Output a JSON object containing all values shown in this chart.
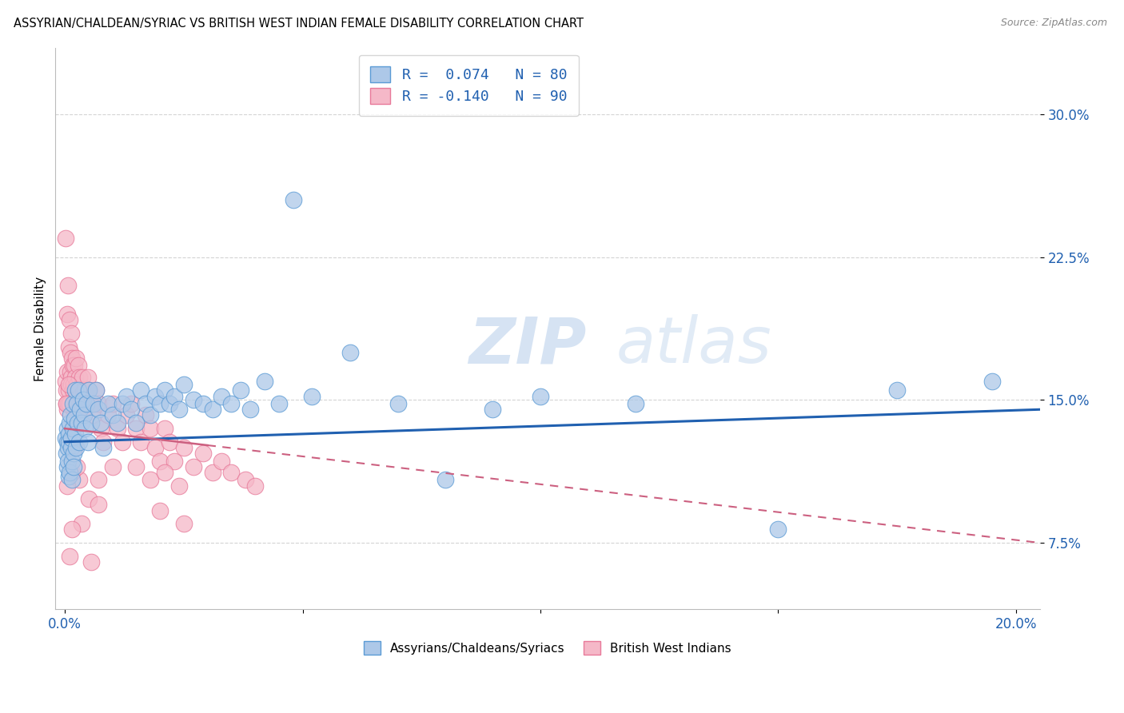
{
  "title": "ASSYRIAN/CHALDEAN/SYRIAC VS BRITISH WEST INDIAN FEMALE DISABILITY CORRELATION CHART",
  "source": "Source: ZipAtlas.com",
  "ylabel": "Female Disability",
  "ytick_labels": [
    "7.5%",
    "15.0%",
    "22.5%",
    "30.0%"
  ],
  "ytick_values": [
    0.075,
    0.15,
    0.225,
    0.3
  ],
  "xtick_values": [
    0.0,
    0.05,
    0.1,
    0.15,
    0.2
  ],
  "xtick_labels": [
    "0.0%",
    "",
    "",
    "",
    "20.0%"
  ],
  "xlim": [
    -0.002,
    0.205
  ],
  "ylim": [
    0.04,
    0.335
  ],
  "legend_blue_short": "Assyrians/Chaldeans/Syriacs",
  "legend_pink_short": "British West Indians",
  "blue_R": 0.074,
  "blue_N": 80,
  "pink_R": -0.14,
  "pink_N": 90,
  "blue_color": "#adc8e8",
  "pink_color": "#f5b8c8",
  "blue_edge_color": "#5b9bd5",
  "pink_edge_color": "#e87a9a",
  "blue_line_color": "#2060b0",
  "pink_line_color": "#cc6080",
  "watermark_color": "#d0dff0",
  "background_color": "#ffffff",
  "grid_color": "#d0d0d0",
  "blue_x": [
    0.0002,
    0.0003,
    0.0004,
    0.0005,
    0.0005,
    0.0006,
    0.0007,
    0.0008,
    0.0008,
    0.0009,
    0.001,
    0.001,
    0.0012,
    0.0013,
    0.0014,
    0.0015,
    0.0015,
    0.0016,
    0.0017,
    0.0018,
    0.0019,
    0.002,
    0.0021,
    0.0022,
    0.0023,
    0.0025,
    0.0027,
    0.0028,
    0.003,
    0.0032,
    0.0035,
    0.0038,
    0.004,
    0.0042,
    0.0045,
    0.0048,
    0.005,
    0.0055,
    0.006,
    0.0065,
    0.007,
    0.0075,
    0.008,
    0.009,
    0.01,
    0.011,
    0.012,
    0.013,
    0.014,
    0.015,
    0.016,
    0.017,
    0.018,
    0.019,
    0.02,
    0.021,
    0.022,
    0.023,
    0.024,
    0.025,
    0.027,
    0.029,
    0.031,
    0.033,
    0.035,
    0.037,
    0.039,
    0.042,
    0.045,
    0.048,
    0.052,
    0.06,
    0.07,
    0.08,
    0.09,
    0.1,
    0.12,
    0.15,
    0.175,
    0.195
  ],
  "blue_y": [
    0.13,
    0.122,
    0.128,
    0.135,
    0.115,
    0.125,
    0.118,
    0.132,
    0.11,
    0.128,
    0.138,
    0.112,
    0.142,
    0.125,
    0.13,
    0.118,
    0.108,
    0.135,
    0.148,
    0.122,
    0.115,
    0.14,
    0.155,
    0.132,
    0.125,
    0.148,
    0.138,
    0.155,
    0.128,
    0.145,
    0.138,
    0.15,
    0.142,
    0.135,
    0.148,
    0.128,
    0.155,
    0.138,
    0.148,
    0.155,
    0.145,
    0.138,
    0.125,
    0.148,
    0.142,
    0.138,
    0.148,
    0.152,
    0.145,
    0.138,
    0.155,
    0.148,
    0.142,
    0.152,
    0.148,
    0.155,
    0.148,
    0.152,
    0.145,
    0.158,
    0.15,
    0.148,
    0.145,
    0.152,
    0.148,
    0.155,
    0.145,
    0.16,
    0.148,
    0.255,
    0.152,
    0.175,
    0.148,
    0.108,
    0.145,
    0.152,
    0.148,
    0.082,
    0.155,
    0.16
  ],
  "pink_x": [
    0.0001,
    0.0002,
    0.0003,
    0.0003,
    0.0004,
    0.0005,
    0.0005,
    0.0006,
    0.0007,
    0.0008,
    0.0009,
    0.001,
    0.001,
    0.0011,
    0.0012,
    0.0013,
    0.0013,
    0.0014,
    0.0015,
    0.0016,
    0.0017,
    0.0018,
    0.0019,
    0.002,
    0.0021,
    0.0022,
    0.0023,
    0.0025,
    0.0027,
    0.0028,
    0.003,
    0.0032,
    0.0034,
    0.0036,
    0.0038,
    0.004,
    0.0042,
    0.0045,
    0.0048,
    0.005,
    0.0055,
    0.006,
    0.0065,
    0.007,
    0.0075,
    0.008,
    0.009,
    0.01,
    0.011,
    0.012,
    0.013,
    0.014,
    0.015,
    0.016,
    0.017,
    0.018,
    0.019,
    0.02,
    0.021,
    0.022,
    0.023,
    0.025,
    0.027,
    0.029,
    0.031,
    0.033,
    0.035,
    0.038,
    0.04,
    0.015,
    0.018,
    0.021,
    0.024,
    0.01,
    0.005,
    0.007,
    0.003,
    0.002,
    0.0015,
    0.0008,
    0.0005,
    0.0003,
    0.02,
    0.025,
    0.001,
    0.007,
    0.0035,
    0.0055,
    0.0015,
    0.0025
  ],
  "pink_y": [
    0.235,
    0.16,
    0.155,
    0.148,
    0.195,
    0.165,
    0.145,
    0.21,
    0.148,
    0.178,
    0.155,
    0.192,
    0.148,
    0.165,
    0.175,
    0.185,
    0.162,
    0.158,
    0.172,
    0.155,
    0.168,
    0.158,
    0.145,
    0.168,
    0.162,
    0.155,
    0.172,
    0.158,
    0.145,
    0.168,
    0.162,
    0.155,
    0.148,
    0.162,
    0.155,
    0.142,
    0.155,
    0.148,
    0.162,
    0.155,
    0.148,
    0.142,
    0.155,
    0.148,
    0.135,
    0.128,
    0.142,
    0.148,
    0.135,
    0.128,
    0.142,
    0.148,
    0.135,
    0.128,
    0.142,
    0.135,
    0.125,
    0.118,
    0.135,
    0.128,
    0.118,
    0.125,
    0.115,
    0.122,
    0.112,
    0.118,
    0.112,
    0.108,
    0.105,
    0.115,
    0.108,
    0.112,
    0.105,
    0.115,
    0.098,
    0.108,
    0.108,
    0.125,
    0.112,
    0.158,
    0.105,
    0.148,
    0.092,
    0.085,
    0.068,
    0.095,
    0.085,
    0.065,
    0.082,
    0.115
  ],
  "blue_trend_x": [
    0.0,
    0.205
  ],
  "blue_trend_y_start": 0.128,
  "blue_trend_y_end": 0.145,
  "pink_trend_x": [
    0.0,
    0.205
  ],
  "pink_trend_y_start": 0.135,
  "pink_trend_y_end": 0.075
}
